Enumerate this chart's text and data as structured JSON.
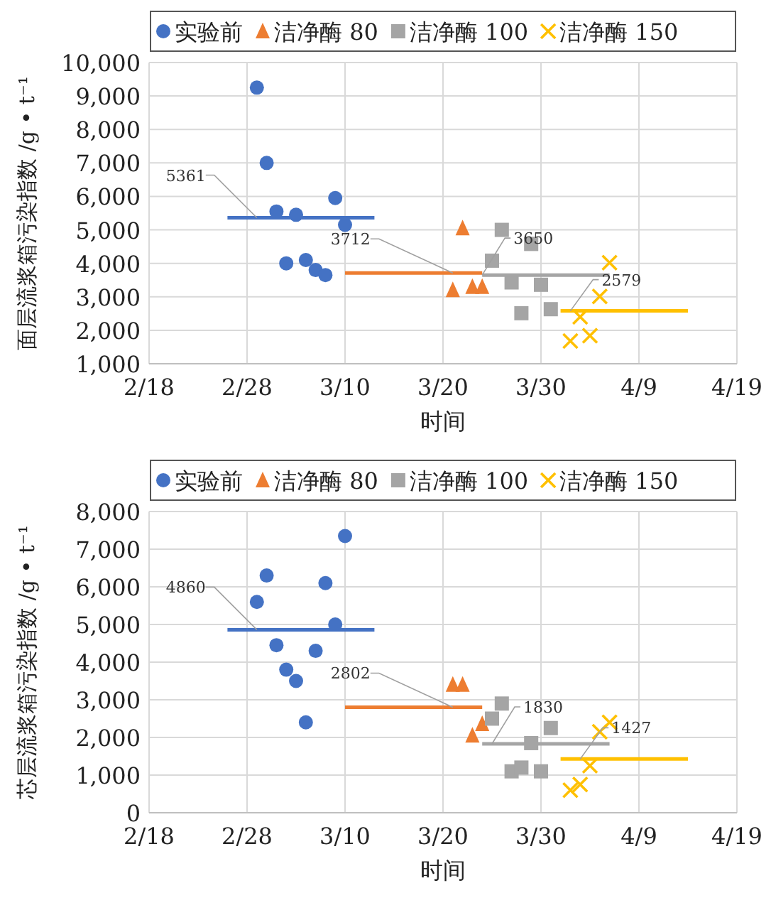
{
  "chart_data": [
    {
      "type": "scatter",
      "xlabel": "时间",
      "ylabel": "面层流浆箱污染指数 /g • t⁻¹",
      "xlim": [
        "--02-18",
        "--04-19"
      ],
      "xticks": [
        {
          "value": "--02-18",
          "label": "2/18"
        },
        {
          "value": "--02-28",
          "label": "2/28"
        },
        {
          "value": "--03-10",
          "label": "3/10"
        },
        {
          "value": "--03-20",
          "label": "3/20"
        },
        {
          "value": "--03-30",
          "label": "3/30"
        },
        {
          "value": "--04-09",
          "label": "4/9"
        },
        {
          "value": "--04-19",
          "label": "4/19"
        }
      ],
      "ylim": [
        1000,
        10000
      ],
      "yticks": [
        {
          "value": 1000,
          "label": "1,000"
        },
        {
          "value": 2000,
          "label": "2,000"
        },
        {
          "value": 3000,
          "label": "3,000"
        },
        {
          "value": 4000,
          "label": "4,000"
        },
        {
          "value": 5000,
          "label": "5,000"
        },
        {
          "value": 6000,
          "label": "6,000"
        },
        {
          "value": 7000,
          "label": "7,000"
        },
        {
          "value": 8000,
          "label": "8,000"
        },
        {
          "value": 9000,
          "label": "9,000"
        },
        {
          "value": 10000,
          "label": "10,000"
        }
      ],
      "grid": true,
      "legend": "top",
      "series": [
        {
          "name": "实验前",
          "marker": "circle",
          "color": "#4472c4",
          "x": [
            "--03-01",
            "--03-02",
            "--03-03",
            "--03-04",
            "--03-05",
            "--03-06",
            "--03-07",
            "--03-08",
            "--03-09",
            "--03-10"
          ],
          "values": [
            9250,
            7000,
            5550,
            4000,
            5450,
            4100,
            3800,
            3650,
            5950,
            5150
          ]
        },
        {
          "name": "洁净酶 80",
          "marker": "triangle",
          "color": "#ed7d31",
          "x": [
            "--03-21",
            "--03-22",
            "--03-23",
            "--03-24"
          ],
          "values": [
            3200,
            5050,
            3300,
            3300
          ]
        },
        {
          "name": "洁净酶 100",
          "marker": "square",
          "color": "#a5a5a5",
          "x": [
            "--03-25",
            "--03-26",
            "--03-27",
            "--03-28",
            "--03-29",
            "--03-30",
            "--03-31"
          ],
          "values": [
            4080,
            5000,
            3430,
            2510,
            4580,
            3360,
            2630
          ]
        },
        {
          "name": "洁净酶 150",
          "marker": "cross",
          "color": "#ffc000",
          "x": [
            "--04-02",
            "--04-03",
            "--04-04",
            "--04-05",
            "--04-06"
          ],
          "values": [
            1680,
            2400,
            1840,
            3010,
            4020
          ]
        },
        {
          "type": "line",
          "color": "#4472c4",
          "x": [
            "--02-26",
            "--03-13"
          ],
          "values": [
            5361,
            5361
          ]
        },
        {
          "type": "line",
          "color": "#ed7d31",
          "x": [
            "--03-10",
            "--03-24"
          ],
          "values": [
            3712,
            3712
          ]
        },
        {
          "type": "line",
          "color": "#a5a5a5",
          "x": [
            "--03-24",
            "--04-06"
          ],
          "values": [
            3650,
            3650
          ]
        },
        {
          "type": "line",
          "color": "#ffc000",
          "x": [
            "--04-01",
            "--04-14"
          ],
          "values": [
            2579,
            2579
          ]
        }
      ],
      "annotations": [
        {
          "text": "5361",
          "x": "--03-01",
          "y": 5361
        },
        {
          "text": "3712",
          "x": "--03-21",
          "y": 3712
        },
        {
          "text": "3650",
          "x": "--03-24",
          "y": 3650
        },
        {
          "text": "2579",
          "x": "--04-02",
          "y": 2579
        }
      ]
    },
    {
      "type": "scatter",
      "xlabel": "时间",
      "ylabel": "芯层流浆箱污染指数 /g • t⁻¹",
      "xlim": [
        "--02-18",
        "--04-19"
      ],
      "xticks": [
        {
          "value": "--02-18",
          "label": "2/18"
        },
        {
          "value": "--02-28",
          "label": "2/28"
        },
        {
          "value": "--03-10",
          "label": "3/10"
        },
        {
          "value": "--03-20",
          "label": "3/20"
        },
        {
          "value": "--03-30",
          "label": "3/30"
        },
        {
          "value": "--04-09",
          "label": "4/9"
        },
        {
          "value": "--04-19",
          "label": "4/19"
        }
      ],
      "ylim": [
        0,
        8000
      ],
      "yticks": [
        0,
        {
          "value": 1000,
          "label": "1,000"
        },
        {
          "value": 2000,
          "label": "2,000"
        },
        {
          "value": 3000,
          "label": "3,000"
        },
        {
          "value": 4000,
          "label": "4,000"
        },
        {
          "value": 5000,
          "label": "5,000"
        },
        {
          "value": 6000,
          "label": "6,000"
        },
        {
          "value": 7000,
          "label": "7,000"
        },
        {
          "value": 8000,
          "label": "8,000"
        }
      ],
      "grid": true,
      "legend": "top",
      "series": [
        {
          "name": "实验前",
          "marker": "circle",
          "color": "#4472c4",
          "x": [
            "--03-01",
            "--03-02",
            "--03-03",
            "--03-04",
            "--03-05",
            "--03-06",
            "--03-07",
            "--03-08",
            "--03-09",
            "--03-10"
          ],
          "values": [
            5600,
            6300,
            4450,
            3800,
            3500,
            2400,
            4300,
            6100,
            5000,
            7350
          ]
        },
        {
          "name": "洁净酶 80",
          "marker": "triangle",
          "color": "#ed7d31",
          "x": [
            "--03-21",
            "--03-22",
            "--03-23",
            "--03-24"
          ],
          "values": [
            3400,
            3400,
            2050,
            2360
          ]
        },
        {
          "name": "洁净酶 100",
          "marker": "square",
          "color": "#a5a5a5",
          "x": [
            "--03-25",
            "--03-26",
            "--03-27",
            "--03-28",
            "--03-29",
            "--03-30",
            "--03-31"
          ],
          "values": [
            2500,
            2900,
            1100,
            1200,
            1850,
            1100,
            2250
          ]
        },
        {
          "name": "洁净酶 150",
          "marker": "cross",
          "color": "#ffc000",
          "x": [
            "--04-02",
            "--04-03",
            "--04-04",
            "--04-05",
            "--04-06"
          ],
          "values": [
            600,
            750,
            1250,
            2150,
            2400
          ]
        },
        {
          "type": "line",
          "color": "#4472c4",
          "x": [
            "--02-26",
            "--03-13"
          ],
          "values": [
            4860,
            4860
          ]
        },
        {
          "type": "line",
          "color": "#ed7d31",
          "x": [
            "--03-10",
            "--03-24"
          ],
          "values": [
            2802,
            2802
          ]
        },
        {
          "type": "line",
          "color": "#a5a5a5",
          "x": [
            "--03-24",
            "--04-06"
          ],
          "values": [
            1830,
            1830
          ]
        },
        {
          "type": "line",
          "color": "#ffc000",
          "x": [
            "--04-01",
            "--04-14"
          ],
          "values": [
            1427,
            1427
          ]
        }
      ],
      "annotations": [
        {
          "text": "4860",
          "x": "--03-01",
          "y": 4860
        },
        {
          "text": "2802",
          "x": "--03-21",
          "y": 2802
        },
        {
          "text": "1830",
          "x": "--03-25",
          "y": 1830
        },
        {
          "text": "1427",
          "x": "--04-03",
          "y": 1427
        }
      ]
    }
  ]
}
